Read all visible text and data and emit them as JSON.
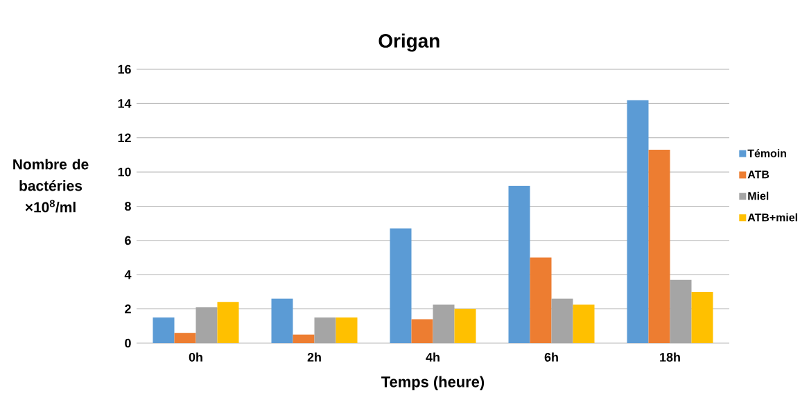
{
  "chart_data": {
    "type": "bar",
    "title": "Origan",
    "xlabel": "Temps (heure)",
    "ylabel": "Nombre de bactéries ×10$^{8}$/ml",
    "categories": [
      "0h",
      "2h",
      "4h",
      "6h",
      "18h"
    ],
    "series": [
      {
        "name": "Témoin",
        "color": "#5b9bd5",
        "values": [
          1.5,
          2.6,
          6.7,
          9.2,
          14.2
        ]
      },
      {
        "name": "ATB",
        "color": "#ed7d31",
        "values": [
          0.6,
          0.5,
          1.4,
          5.0,
          11.3
        ]
      },
      {
        "name": "Miel",
        "color": "#a5a5a5",
        "values": [
          2.1,
          1.5,
          2.25,
          2.6,
          3.7
        ]
      },
      {
        "name": "ATB+miel",
        "color": "#ffc000",
        "values": [
          2.4,
          1.5,
          2.0,
          2.25,
          3.0
        ]
      }
    ],
    "ylim": [
      0,
      16
    ],
    "yticks": [
      0,
      2,
      4,
      6,
      8,
      10,
      12,
      14,
      16
    ],
    "grid": "y",
    "legend": "right"
  }
}
